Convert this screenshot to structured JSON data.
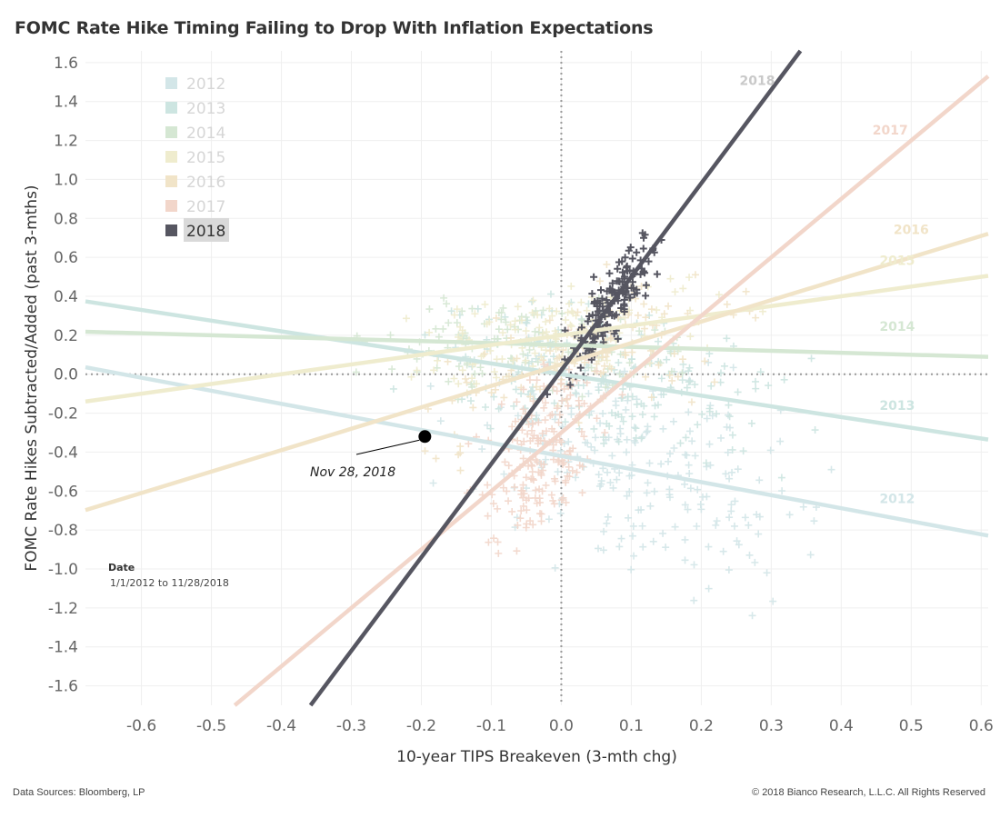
{
  "chart_data": {
    "type": "scatter",
    "title": "FOMC Rate Hike Timing Failing to Drop With Inflation Expectations",
    "xlabel": "10-year TIPS Breakeven (3-mth chg)",
    "ylabel": "FOMC Rate Hikes Subtracted/Added (past 3-mths)",
    "xlim": [
      -0.68,
      0.61
    ],
    "ylim": [
      -1.7,
      1.66
    ],
    "x_ticks": [
      "-0.6",
      "-0.5",
      "-0.4",
      "-0.3",
      "-0.2",
      "-0.1",
      "0.0",
      "0.1",
      "0.2",
      "0.3",
      "0.4",
      "0.5",
      "0.6"
    ],
    "y_ticks": [
      "-1.6",
      "-1.4",
      "-1.2",
      "-1.0",
      "-0.8",
      "-0.6",
      "-0.4",
      "-0.2",
      "0.0",
      "0.2",
      "0.4",
      "0.6",
      "0.8",
      "1.0",
      "1.2",
      "1.4",
      "1.6"
    ],
    "grid": true,
    "legend_position": "top-left",
    "series": [
      {
        "name": "2012",
        "color": "#d3e6e8",
        "slope": -0.67,
        "intercept": -0.42,
        "cluster": {
          "x_center": 0.12,
          "x_spread": 0.42,
          "y_spread": 0.5,
          "count": 220
        }
      },
      {
        "name": "2013",
        "color": "#cde5e1",
        "slope": -0.55,
        "intercept": -0.0,
        "cluster": {
          "x_center": 0.05,
          "x_spread": 0.45,
          "y_spread": 0.35,
          "count": 200
        }
      },
      {
        "name": "2014",
        "color": "#d5e7d3",
        "slope": -0.1,
        "intercept": 0.15,
        "cluster": {
          "x_center": -0.05,
          "x_spread": 0.35,
          "y_spread": 0.25,
          "count": 120
        }
      },
      {
        "name": "2015",
        "color": "#efecce",
        "slope": 0.5,
        "intercept": 0.2,
        "cluster": {
          "x_center": 0.0,
          "x_spread": 0.4,
          "y_spread": 0.25,
          "count": 140
        }
      },
      {
        "name": "2016",
        "color": "#f1e4c8",
        "slope": 1.1,
        "intercept": 0.05,
        "cluster": {
          "x_center": 0.05,
          "x_spread": 0.4,
          "y_spread": 0.3,
          "count": 140
        }
      },
      {
        "name": "2017",
        "color": "#f2d6ca",
        "slope": 3.0,
        "intercept": -0.3,
        "cluster": {
          "x_center": -0.03,
          "x_spread": 0.15,
          "y_spread": 0.4,
          "count": 200
        }
      },
      {
        "name": "2018",
        "color": "#565661",
        "slope": 4.8,
        "intercept": 0.02,
        "cluster": {
          "x_center": 0.07,
          "x_spread": 0.12,
          "y_spread": 0.18,
          "count": 160
        }
      }
    ],
    "annotation": {
      "label": "Nov 28, 2018",
      "x": -0.195,
      "y": -0.32
    },
    "date_filter": {
      "title": "Date",
      "range": "1/1/2012 to 11/28/2018"
    }
  },
  "footer": {
    "source": "Data Sources: Bloomberg, LP",
    "copyright": "© 2018 Bianco Research, L.L.C. All Rights Reserved"
  }
}
